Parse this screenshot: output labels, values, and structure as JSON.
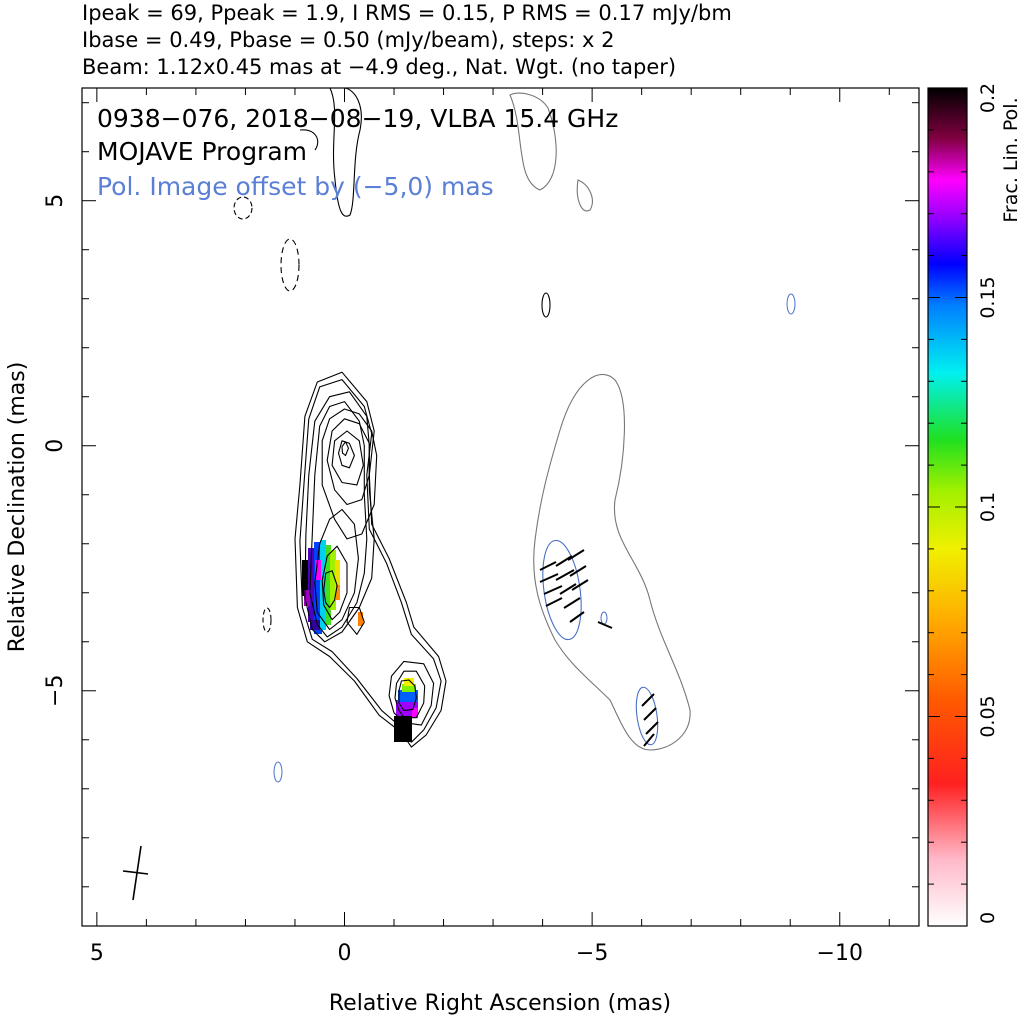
{
  "header": {
    "line1": "Ipeak = 69, Ppeak = 1.9, I RMS = 0.15, P RMS = 0.17 mJy/bm",
    "line2": "Ibase = 0.49, Pbase = 0.50 (mJy/beam), steps: x 2",
    "line3": "Beam: 1.12x0.45 mas at −4.9 deg., Nat. Wgt. (no taper)"
  },
  "annotations": {
    "source_line": "0938−076, 2018−08−19, VLBA 15.4 GHz",
    "program_line": "MOJAVE Program",
    "offset_line": "Pol. Image offset by (−5,0) mas"
  },
  "colors": {
    "stokes_i_contour": "#000000",
    "pol_contour": "#4a6fc4",
    "offset_text": "#5b7fd6",
    "total_intensity_outline": "#777777"
  },
  "chart_data": {
    "type": "heatmap",
    "title": "0938−076, 2018−08−19, VLBA 15.4 GHz",
    "xlabel": "Relative Right Ascension (mas)",
    "ylabel": "Relative Declination (mas)",
    "xlim": [
      5.3,
      -11.6
    ],
    "ylim": [
      -9.8,
      7.3
    ],
    "x_ticks": [
      5,
      0,
      -5,
      -10
    ],
    "y_ticks": [
      5,
      0,
      -5
    ],
    "x_tick_labels": [
      "5",
      "0",
      "−5",
      "−10"
    ],
    "y_tick_labels": [
      "5",
      "0",
      "−5"
    ],
    "grid": false,
    "colorbar": {
      "label": "Frac. Lin. Pol.",
      "range": [
        0,
        0.2
      ],
      "ticks": [
        0,
        0.05,
        0.1,
        0.15,
        0.2
      ],
      "tick_labels": [
        "0",
        "0.05",
        "0.1",
        "0.15",
        "0.2"
      ]
    },
    "stokes_i_contours": [
      {
        "level": 1,
        "points": [
          [
            -1.15,
            -5.85
          ],
          [
            -1.35,
            -6.15
          ],
          [
            -1.65,
            -5.9
          ],
          [
            -1.95,
            -5.4
          ],
          [
            -2.05,
            -4.8
          ],
          [
            -1.9,
            -4.3
          ],
          [
            -1.4,
            -3.7
          ],
          [
            -1.25,
            -3.2
          ],
          [
            -0.9,
            -2.3
          ],
          [
            -0.55,
            -1.6
          ],
          [
            -0.5,
            -0.6
          ],
          [
            -0.6,
            0.3
          ],
          [
            -0.45,
            0.9
          ],
          [
            0.05,
            1.5
          ],
          [
            0.55,
            1.3
          ],
          [
            0.8,
            0.6
          ],
          [
            0.9,
            -0.8
          ],
          [
            1.0,
            -1.9
          ],
          [
            0.95,
            -3.3
          ],
          [
            0.75,
            -4.0
          ],
          [
            0.3,
            -4.3
          ],
          [
            -0.2,
            -4.8
          ],
          [
            -0.7,
            -5.5
          ],
          [
            -1.15,
            -5.85
          ]
        ]
      },
      {
        "level": 2,
        "points": [
          [
            -1.15,
            -5.75
          ],
          [
            -1.35,
            -6.05
          ],
          [
            -1.6,
            -5.8
          ],
          [
            -1.85,
            -5.35
          ],
          [
            -1.95,
            -4.8
          ],
          [
            -1.8,
            -4.35
          ],
          [
            -1.35,
            -3.85
          ],
          [
            -1.15,
            -3.2
          ],
          [
            -0.85,
            -2.4
          ],
          [
            -0.5,
            -1.7
          ],
          [
            -0.45,
            -0.6
          ],
          [
            -0.55,
            0.25
          ],
          [
            -0.4,
            0.8
          ],
          [
            0.05,
            1.35
          ],
          [
            0.5,
            1.2
          ],
          [
            0.72,
            0.55
          ],
          [
            0.82,
            -0.8
          ],
          [
            0.9,
            -1.95
          ],
          [
            0.85,
            -3.3
          ],
          [
            0.65,
            -3.95
          ],
          [
            0.25,
            -4.2
          ],
          [
            -0.25,
            -4.75
          ],
          [
            -0.75,
            -5.4
          ],
          [
            -1.15,
            -5.75
          ]
        ]
      },
      {
        "level": 3,
        "points": [
          [
            -1.2,
            -5.65
          ],
          [
            -1.55,
            -5.7
          ],
          [
            -1.75,
            -5.3
          ],
          [
            -1.8,
            -4.85
          ],
          [
            -1.6,
            -4.45
          ],
          [
            -1.2,
            -4.4
          ],
          [
            -0.95,
            -4.7
          ],
          [
            -0.9,
            -5.1
          ],
          [
            -1.0,
            -5.45
          ],
          [
            -1.2,
            -5.65
          ]
        ]
      },
      {
        "level": 4,
        "points": [
          [
            -1.2,
            -5.55
          ],
          [
            -1.45,
            -5.55
          ],
          [
            -1.6,
            -5.25
          ],
          [
            -1.62,
            -4.9
          ],
          [
            -1.45,
            -4.6
          ],
          [
            -1.2,
            -4.6
          ],
          [
            -1.05,
            -4.85
          ],
          [
            -1.02,
            -5.15
          ],
          [
            -1.1,
            -5.4
          ],
          [
            -1.2,
            -5.55
          ]
        ]
      },
      {
        "level": 5,
        "points": [
          [
            -1.2,
            -5.4
          ],
          [
            -1.38,
            -5.38
          ],
          [
            -1.45,
            -5.15
          ],
          [
            -1.42,
            -4.9
          ],
          [
            -1.3,
            -4.78
          ],
          [
            -1.15,
            -4.8
          ],
          [
            -1.1,
            -5.0
          ],
          [
            -1.1,
            -5.25
          ],
          [
            -1.2,
            -5.4
          ]
        ]
      },
      {
        "level": 6,
        "points": [
          [
            0.4,
            -4.0
          ],
          [
            0.05,
            -3.8
          ],
          [
            -0.3,
            -3.3
          ],
          [
            -0.55,
            -2.7
          ],
          [
            -0.6,
            -1.9
          ],
          [
            -0.5,
            -0.9
          ],
          [
            -0.5,
            0.0
          ],
          [
            -0.45,
            0.6
          ],
          [
            -0.1,
            1.1
          ],
          [
            0.3,
            1.0
          ],
          [
            0.6,
            0.5
          ],
          [
            0.72,
            -0.6
          ],
          [
            0.78,
            -1.8
          ],
          [
            0.8,
            -3.1
          ],
          [
            0.65,
            -3.75
          ],
          [
            0.4,
            -4.0
          ]
        ]
      },
      {
        "level": 7,
        "points": [
          [
            0.35,
            -3.9
          ],
          [
            0.05,
            -3.7
          ],
          [
            -0.25,
            -3.2
          ],
          [
            -0.4,
            -2.6
          ],
          [
            -0.45,
            -1.9
          ],
          [
            -0.4,
            -1.0
          ],
          [
            -0.4,
            0.0
          ],
          [
            -0.3,
            0.5
          ],
          [
            0.0,
            0.9
          ],
          [
            0.3,
            0.8
          ],
          [
            0.5,
            0.4
          ],
          [
            0.6,
            -0.6
          ],
          [
            0.65,
            -1.8
          ],
          [
            0.7,
            -3.0
          ],
          [
            0.55,
            -3.65
          ],
          [
            0.35,
            -3.9
          ]
        ]
      },
      {
        "level": 8,
        "points": [
          [
            0.3,
            -3.75
          ],
          [
            0.05,
            -3.55
          ],
          [
            -0.2,
            -3.0
          ],
          [
            -0.28,
            -2.3
          ],
          [
            -0.2,
            -1.6
          ],
          [
            0.05,
            -1.3
          ],
          [
            0.3,
            -1.5
          ],
          [
            0.5,
            -2.0
          ],
          [
            0.6,
            -2.8
          ],
          [
            0.55,
            -3.4
          ],
          [
            0.3,
            -3.75
          ]
        ]
      },
      {
        "level": 9,
        "points": [
          [
            0.25,
            -3.55
          ],
          [
            0.1,
            -3.4
          ],
          [
            -0.05,
            -3.0
          ],
          [
            -0.05,
            -2.4
          ],
          [
            0.15,
            -2.05
          ],
          [
            0.35,
            -2.25
          ],
          [
            0.45,
            -2.75
          ],
          [
            0.42,
            -3.25
          ],
          [
            0.25,
            -3.55
          ]
        ]
      },
      {
        "level": 10,
        "points": [
          [
            0.3,
            -3.3
          ],
          [
            0.2,
            -3.15
          ],
          [
            0.15,
            -2.85
          ],
          [
            0.25,
            -2.55
          ],
          [
            0.38,
            -2.6
          ],
          [
            0.42,
            -2.95
          ],
          [
            0.38,
            -3.2
          ],
          [
            0.3,
            -3.3
          ]
        ]
      },
      {
        "level": 11,
        "points": [
          [
            -0.25,
            -3.85
          ],
          [
            -0.05,
            -3.6
          ],
          [
            -0.1,
            -3.3
          ],
          [
            -0.3,
            -3.3
          ],
          [
            -0.4,
            -3.6
          ],
          [
            -0.25,
            -3.85
          ]
        ]
      },
      {
        "level": 12,
        "points": [
          [
            -0.35,
            -1.8
          ],
          [
            -0.6,
            -1.2
          ],
          [
            -0.65,
            -0.2
          ],
          [
            -0.55,
            0.3
          ],
          [
            -0.3,
            0.65
          ],
          [
            0.0,
            0.75
          ],
          [
            0.3,
            0.55
          ],
          [
            0.45,
            0.1
          ],
          [
            0.45,
            -0.8
          ],
          [
            0.2,
            -1.5
          ],
          [
            -0.05,
            -1.9
          ],
          [
            -0.35,
            -1.8
          ]
        ]
      },
      {
        "level": 13,
        "points": [
          [
            -0.35,
            -1.1
          ],
          [
            -0.5,
            -0.6
          ],
          [
            -0.5,
            0.05
          ],
          [
            -0.3,
            0.45
          ],
          [
            0.0,
            0.55
          ],
          [
            0.25,
            0.3
          ],
          [
            0.35,
            -0.3
          ],
          [
            0.2,
            -0.9
          ],
          [
            -0.05,
            -1.2
          ],
          [
            -0.35,
            -1.1
          ]
        ]
      },
      {
        "level": 14,
        "points": [
          [
            -0.25,
            -0.8
          ],
          [
            -0.38,
            -0.4
          ],
          [
            -0.3,
            0.1
          ],
          [
            -0.05,
            0.3
          ],
          [
            0.2,
            0.1
          ],
          [
            0.25,
            -0.4
          ],
          [
            0.05,
            -0.75
          ],
          [
            -0.25,
            -0.8
          ]
        ]
      },
      {
        "level": 15,
        "points": [
          [
            -0.1,
            -0.45
          ],
          [
            -0.2,
            -0.2
          ],
          [
            -0.1,
            0.05
          ],
          [
            0.05,
            0.1
          ],
          [
            0.12,
            -0.15
          ],
          [
            0.05,
            -0.4
          ],
          [
            -0.1,
            -0.45
          ]
        ]
      },
      {
        "level": 16,
        "points": [
          [
            -0.02,
            -0.2
          ],
          [
            -0.08,
            -0.05
          ],
          [
            -0.02,
            0.08
          ],
          [
            0.05,
            -0.02
          ],
          [
            0.04,
            -0.15
          ],
          [
            -0.02,
            -0.2
          ]
        ]
      }
    ]
  }
}
